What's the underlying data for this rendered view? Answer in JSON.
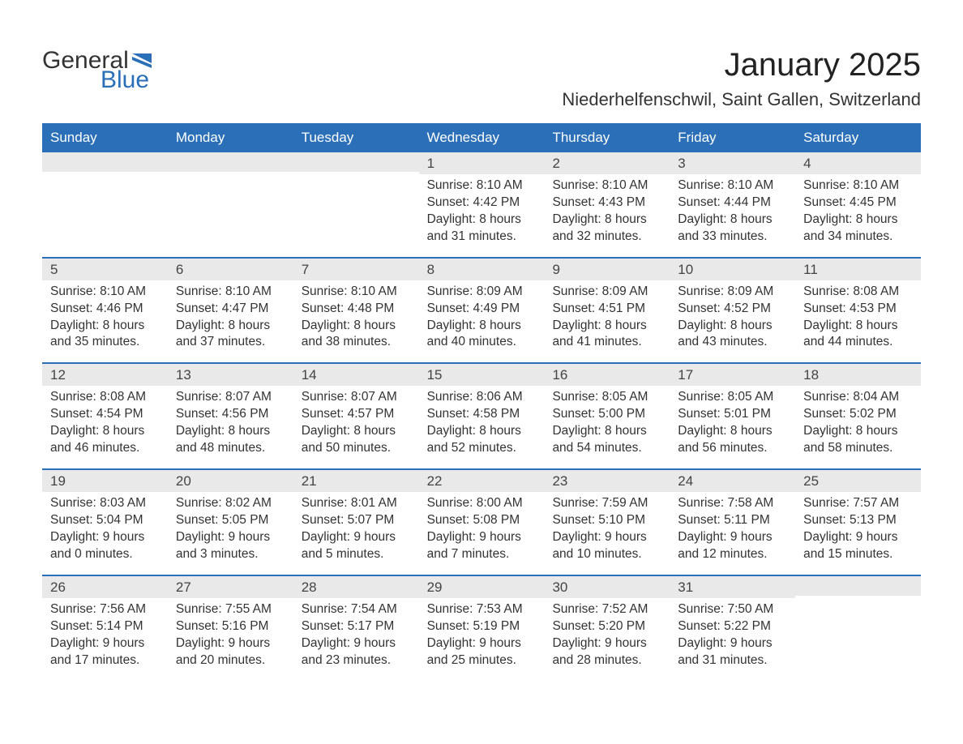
{
  "brand": {
    "word1": "General",
    "word2": "Blue",
    "flag_color": "#2a6fb7",
    "text_color": "#333333",
    "blue_color": "#2a6fb7"
  },
  "header": {
    "title": "January 2025",
    "location": "Niederhelfenschwil, Saint Gallen, Switzerland",
    "title_fontsize": 40,
    "location_fontsize": 22
  },
  "theme": {
    "header_bg": "#2a6fb7",
    "header_fg": "#ffffff",
    "daynum_bg": "#e9e9e9",
    "daynum_fg": "#444444",
    "body_fg": "#333333",
    "week_border": "#2a6fb7",
    "page_bg": "#ffffff",
    "body_fontsize": 15.5,
    "dow_fontsize": 17
  },
  "days_of_week": [
    "Sunday",
    "Monday",
    "Tuesday",
    "Wednesday",
    "Thursday",
    "Friday",
    "Saturday"
  ],
  "weeks": [
    [
      {
        "n": "",
        "sunrise": "",
        "sunset": "",
        "daylight": ""
      },
      {
        "n": "",
        "sunrise": "",
        "sunset": "",
        "daylight": ""
      },
      {
        "n": "",
        "sunrise": "",
        "sunset": "",
        "daylight": ""
      },
      {
        "n": "1",
        "sunrise": "Sunrise: 8:10 AM",
        "sunset": "Sunset: 4:42 PM",
        "daylight": "Daylight: 8 hours and 31 minutes."
      },
      {
        "n": "2",
        "sunrise": "Sunrise: 8:10 AM",
        "sunset": "Sunset: 4:43 PM",
        "daylight": "Daylight: 8 hours and 32 minutes."
      },
      {
        "n": "3",
        "sunrise": "Sunrise: 8:10 AM",
        "sunset": "Sunset: 4:44 PM",
        "daylight": "Daylight: 8 hours and 33 minutes."
      },
      {
        "n": "4",
        "sunrise": "Sunrise: 8:10 AM",
        "sunset": "Sunset: 4:45 PM",
        "daylight": "Daylight: 8 hours and 34 minutes."
      }
    ],
    [
      {
        "n": "5",
        "sunrise": "Sunrise: 8:10 AM",
        "sunset": "Sunset: 4:46 PM",
        "daylight": "Daylight: 8 hours and 35 minutes."
      },
      {
        "n": "6",
        "sunrise": "Sunrise: 8:10 AM",
        "sunset": "Sunset: 4:47 PM",
        "daylight": "Daylight: 8 hours and 37 minutes."
      },
      {
        "n": "7",
        "sunrise": "Sunrise: 8:10 AM",
        "sunset": "Sunset: 4:48 PM",
        "daylight": "Daylight: 8 hours and 38 minutes."
      },
      {
        "n": "8",
        "sunrise": "Sunrise: 8:09 AM",
        "sunset": "Sunset: 4:49 PM",
        "daylight": "Daylight: 8 hours and 40 minutes."
      },
      {
        "n": "9",
        "sunrise": "Sunrise: 8:09 AM",
        "sunset": "Sunset: 4:51 PM",
        "daylight": "Daylight: 8 hours and 41 minutes."
      },
      {
        "n": "10",
        "sunrise": "Sunrise: 8:09 AM",
        "sunset": "Sunset: 4:52 PM",
        "daylight": "Daylight: 8 hours and 43 minutes."
      },
      {
        "n": "11",
        "sunrise": "Sunrise: 8:08 AM",
        "sunset": "Sunset: 4:53 PM",
        "daylight": "Daylight: 8 hours and 44 minutes."
      }
    ],
    [
      {
        "n": "12",
        "sunrise": "Sunrise: 8:08 AM",
        "sunset": "Sunset: 4:54 PM",
        "daylight": "Daylight: 8 hours and 46 minutes."
      },
      {
        "n": "13",
        "sunrise": "Sunrise: 8:07 AM",
        "sunset": "Sunset: 4:56 PM",
        "daylight": "Daylight: 8 hours and 48 minutes."
      },
      {
        "n": "14",
        "sunrise": "Sunrise: 8:07 AM",
        "sunset": "Sunset: 4:57 PM",
        "daylight": "Daylight: 8 hours and 50 minutes."
      },
      {
        "n": "15",
        "sunrise": "Sunrise: 8:06 AM",
        "sunset": "Sunset: 4:58 PM",
        "daylight": "Daylight: 8 hours and 52 minutes."
      },
      {
        "n": "16",
        "sunrise": "Sunrise: 8:05 AM",
        "sunset": "Sunset: 5:00 PM",
        "daylight": "Daylight: 8 hours and 54 minutes."
      },
      {
        "n": "17",
        "sunrise": "Sunrise: 8:05 AM",
        "sunset": "Sunset: 5:01 PM",
        "daylight": "Daylight: 8 hours and 56 minutes."
      },
      {
        "n": "18",
        "sunrise": "Sunrise: 8:04 AM",
        "sunset": "Sunset: 5:02 PM",
        "daylight": "Daylight: 8 hours and 58 minutes."
      }
    ],
    [
      {
        "n": "19",
        "sunrise": "Sunrise: 8:03 AM",
        "sunset": "Sunset: 5:04 PM",
        "daylight": "Daylight: 9 hours and 0 minutes."
      },
      {
        "n": "20",
        "sunrise": "Sunrise: 8:02 AM",
        "sunset": "Sunset: 5:05 PM",
        "daylight": "Daylight: 9 hours and 3 minutes."
      },
      {
        "n": "21",
        "sunrise": "Sunrise: 8:01 AM",
        "sunset": "Sunset: 5:07 PM",
        "daylight": "Daylight: 9 hours and 5 minutes."
      },
      {
        "n": "22",
        "sunrise": "Sunrise: 8:00 AM",
        "sunset": "Sunset: 5:08 PM",
        "daylight": "Daylight: 9 hours and 7 minutes."
      },
      {
        "n": "23",
        "sunrise": "Sunrise: 7:59 AM",
        "sunset": "Sunset: 5:10 PM",
        "daylight": "Daylight: 9 hours and 10 minutes."
      },
      {
        "n": "24",
        "sunrise": "Sunrise: 7:58 AM",
        "sunset": "Sunset: 5:11 PM",
        "daylight": "Daylight: 9 hours and 12 minutes."
      },
      {
        "n": "25",
        "sunrise": "Sunrise: 7:57 AM",
        "sunset": "Sunset: 5:13 PM",
        "daylight": "Daylight: 9 hours and 15 minutes."
      }
    ],
    [
      {
        "n": "26",
        "sunrise": "Sunrise: 7:56 AM",
        "sunset": "Sunset: 5:14 PM",
        "daylight": "Daylight: 9 hours and 17 minutes."
      },
      {
        "n": "27",
        "sunrise": "Sunrise: 7:55 AM",
        "sunset": "Sunset: 5:16 PM",
        "daylight": "Daylight: 9 hours and 20 minutes."
      },
      {
        "n": "28",
        "sunrise": "Sunrise: 7:54 AM",
        "sunset": "Sunset: 5:17 PM",
        "daylight": "Daylight: 9 hours and 23 minutes."
      },
      {
        "n": "29",
        "sunrise": "Sunrise: 7:53 AM",
        "sunset": "Sunset: 5:19 PM",
        "daylight": "Daylight: 9 hours and 25 minutes."
      },
      {
        "n": "30",
        "sunrise": "Sunrise: 7:52 AM",
        "sunset": "Sunset: 5:20 PM",
        "daylight": "Daylight: 9 hours and 28 minutes."
      },
      {
        "n": "31",
        "sunrise": "Sunrise: 7:50 AM",
        "sunset": "Sunset: 5:22 PM",
        "daylight": "Daylight: 9 hours and 31 minutes."
      },
      {
        "n": "",
        "sunrise": "",
        "sunset": "",
        "daylight": ""
      }
    ]
  ]
}
